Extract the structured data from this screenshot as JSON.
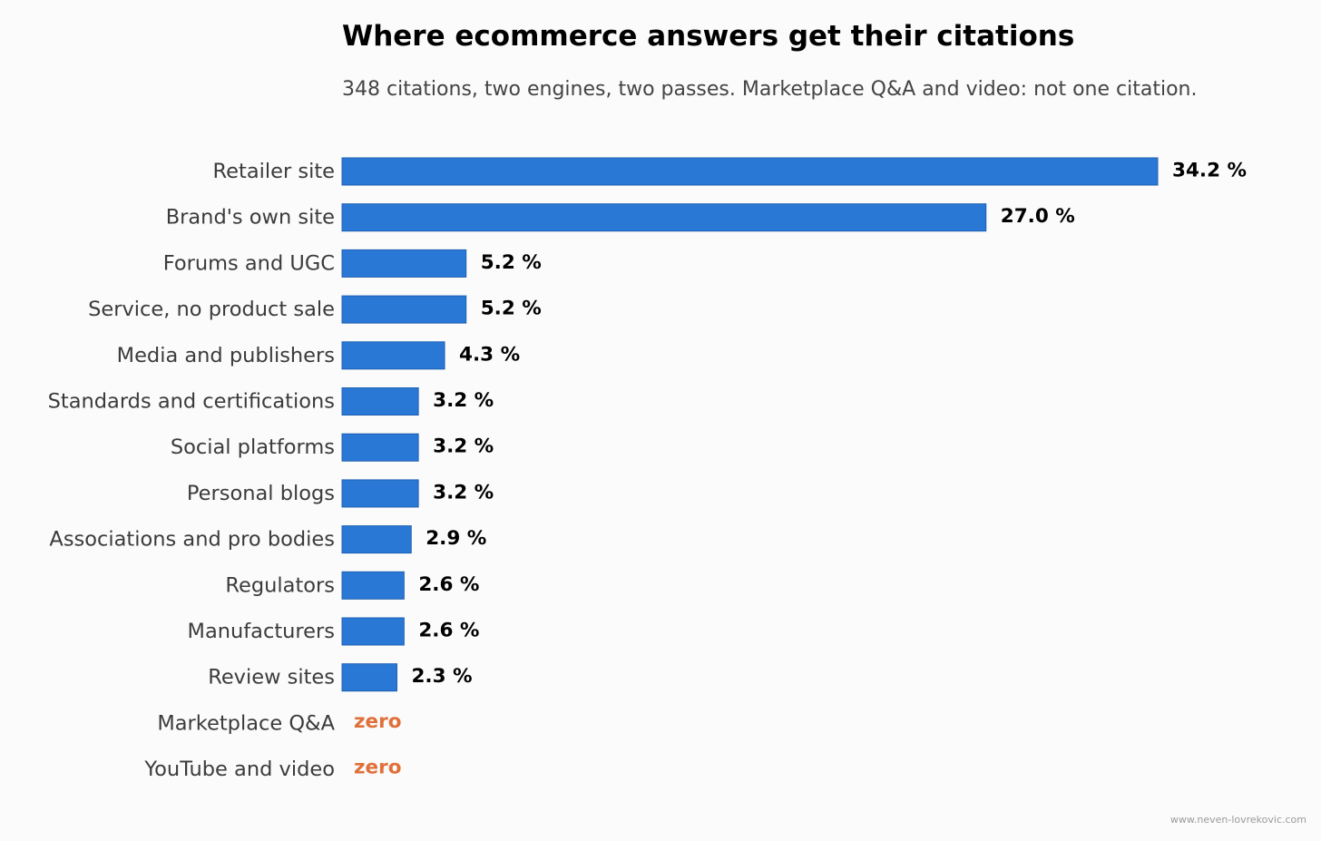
{
  "chart_data": {
    "type": "bar",
    "orientation": "horizontal",
    "title": "Where ecommerce answers get their citations",
    "subtitle": "348 citations, two engines, two passes. Marketplace Q&A and video: not one citation.",
    "categories": [
      "Retailer site",
      "Brand's own site",
      "Forums and UGC",
      "Service, no product sale",
      "Media and publishers",
      "Standards and certifications",
      "Social platforms",
      "Personal blogs",
      "Associations and pro bodies",
      "Regulators",
      "Manufacturers",
      "Review sites",
      "Marketplace Q&A",
      "YouTube and video"
    ],
    "values": [
      34.2,
      27.0,
      5.2,
      5.2,
      4.3,
      3.2,
      3.2,
      3.2,
      2.9,
      2.6,
      2.6,
      2.3,
      0,
      0
    ],
    "value_labels": [
      "34.2 %",
      "27.0 %",
      "5.2 %",
      "5.2 %",
      "4.3 %",
      "3.2 %",
      "3.2 %",
      "3.2 %",
      "2.9 %",
      "2.6 %",
      "2.6 %",
      "2.3 %",
      "zero",
      "zero"
    ],
    "xlabel": "",
    "ylabel": "",
    "xlim": [
      0,
      34.2
    ],
    "grid": false,
    "legend": "none",
    "colors": {
      "bar": "#2a78d6",
      "bar_edge": "#1d5fb0",
      "zero_label": "#e0703a",
      "category_text": "#3b3b3b",
      "value_text": "#000000"
    }
  },
  "footer": {
    "source": "www.neven-lovrekovic.com"
  }
}
